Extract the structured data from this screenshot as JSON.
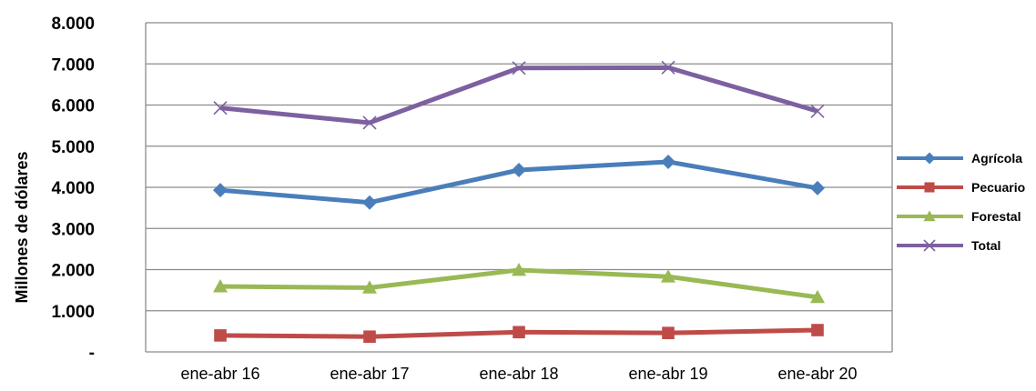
{
  "chart_data": {
    "type": "line",
    "ylabel": "Millones de dólares",
    "ylim": [
      0,
      8000
    ],
    "yticks": [
      {
        "value": 0,
        "label": "-"
      },
      {
        "value": 1000,
        "label": "1.000"
      },
      {
        "value": 2000,
        "label": "2.000"
      },
      {
        "value": 3000,
        "label": "3.000"
      },
      {
        "value": 4000,
        "label": "4.000"
      },
      {
        "value": 5000,
        "label": "5.000"
      },
      {
        "value": 6000,
        "label": "6.000"
      },
      {
        "value": 7000,
        "label": "7.000"
      },
      {
        "value": 8000,
        "label": "8.000"
      }
    ],
    "categories": [
      "ene-abr 16",
      "ene-abr 17",
      "ene-abr 18",
      "ene-abr 19",
      "ene-abr 20"
    ],
    "grid": true,
    "legend_position": "right",
    "series": [
      {
        "name": "Agrícola",
        "color": "#4a7ebb",
        "marker": "diamond",
        "values": [
          3930,
          3630,
          4420,
          4620,
          3980
        ]
      },
      {
        "name": "Pecuario",
        "color": "#be4b48",
        "marker": "square",
        "values": [
          400,
          370,
          480,
          460,
          530
        ]
      },
      {
        "name": "Forestal",
        "color": "#98b954",
        "marker": "triangle",
        "values": [
          1590,
          1560,
          1990,
          1830,
          1330
        ]
      },
      {
        "name": "Total",
        "color": "#7d60a0",
        "marker": "x",
        "values": [
          5930,
          5570,
          6900,
          6910,
          5850
        ]
      }
    ]
  }
}
